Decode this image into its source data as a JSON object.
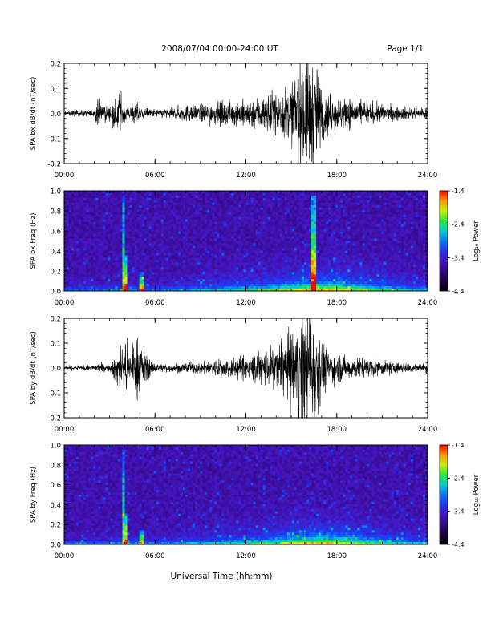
{
  "header": {
    "title": "2008/07/04  00:00-24:00 UT",
    "page": "Page 1/1"
  },
  "chart_data": [
    {
      "type": "line",
      "ylabel": "SPA bx dB/dt (nT/sec)",
      "ylim": [
        -0.2,
        0.2
      ],
      "xlim": [
        0,
        24
      ],
      "yticks": [
        "0.2",
        "0.1",
        "0.0",
        "-0.1",
        "-0.2"
      ],
      "xticks": [
        "00:00",
        "06:00",
        "12:00",
        "18:00",
        "24:00"
      ],
      "envelope": {
        "x": [
          0,
          1,
          2,
          2.2,
          3,
          3.6,
          4,
          4.3,
          4.8,
          5.1,
          6,
          7,
          8,
          9,
          10,
          11,
          12,
          13,
          14,
          15,
          15.5,
          16,
          16.5,
          17,
          17.5,
          18,
          19,
          20,
          21,
          22,
          23,
          24
        ],
        "amplitude": [
          0.01,
          0.01,
          0.01,
          0.05,
          0.02,
          0.07,
          0.05,
          0.02,
          0.04,
          0.02,
          0.015,
          0.02,
          0.03,
          0.03,
          0.04,
          0.04,
          0.05,
          0.06,
          0.08,
          0.1,
          0.2,
          0.2,
          0.2,
          0.1,
          0.07,
          0.06,
          0.05,
          0.04,
          0.03,
          0.025,
          0.02,
          0.02
        ]
      }
    },
    {
      "type": "heatmap",
      "ylabel": "SPA bx Freq (Hz)",
      "ylim": [
        0.0,
        1.0
      ],
      "xlim": [
        0,
        24
      ],
      "yticks": [
        "1.0",
        "0.8",
        "0.6",
        "0.4",
        "0.2",
        "0.0"
      ],
      "xticks": [
        "00:00",
        "06:00",
        "12:00",
        "18:00",
        "24:00"
      ],
      "colorbar": {
        "label": "Log₁₀ Power",
        "ticks": [
          "-1.4",
          "-2.4",
          "-3.4",
          "-4.4"
        ],
        "range": [
          -4.4,
          -1.4
        ]
      },
      "features": [
        {
          "x": 3.9,
          "f_max": 0.95,
          "strength": 0.55
        },
        {
          "x": 4.1,
          "f_max": 0.35,
          "strength": 0.75
        },
        {
          "x": 5.1,
          "f_max": 0.2,
          "strength": 0.6
        },
        {
          "x": 16.5,
          "f_max": 0.95,
          "strength": 0.7
        }
      ]
    },
    {
      "type": "line",
      "ylabel": "SPA by dB/dt (nT/sec)",
      "ylim": [
        -0.2,
        0.2
      ],
      "xlim": [
        0,
        24
      ],
      "yticks": [
        "0.2",
        "0.1",
        "0.0",
        "-0.1",
        "-0.2"
      ],
      "xticks": [
        "00:00",
        "06:00",
        "12:00",
        "18:00",
        "24:00"
      ],
      "envelope": {
        "x": [
          0,
          1,
          2,
          2.2,
          3,
          3.6,
          4,
          4.3,
          4.8,
          5.1,
          6,
          7,
          8,
          9,
          10,
          11,
          12,
          13,
          14,
          15,
          15.5,
          16,
          16.5,
          17,
          17.5,
          18,
          19,
          20,
          21,
          22,
          23,
          24
        ],
        "amplitude": [
          0.008,
          0.008,
          0.008,
          0.02,
          0.01,
          0.08,
          0.1,
          0.06,
          0.12,
          0.08,
          0.015,
          0.015,
          0.02,
          0.02,
          0.03,
          0.035,
          0.045,
          0.06,
          0.08,
          0.12,
          0.2,
          0.2,
          0.2,
          0.1,
          0.06,
          0.05,
          0.04,
          0.03,
          0.025,
          0.02,
          0.015,
          0.015
        ]
      }
    },
    {
      "type": "heatmap",
      "ylabel": "SPA by Freq (Hz)",
      "ylim": [
        0.0,
        1.0
      ],
      "xlim": [
        0,
        24
      ],
      "yticks": [
        "1.0",
        "0.8",
        "0.6",
        "0.4",
        "0.2",
        "0.0"
      ],
      "xticks": [
        "00:00",
        "06:00",
        "12:00",
        "18:00",
        "24:00"
      ],
      "colorbar": {
        "label": "Log₁₀ Power",
        "ticks": [
          "-1.4",
          "-2.4",
          "-3.4",
          "-4.4"
        ],
        "range": [
          -4.4,
          -1.4
        ]
      },
      "features": [
        {
          "x": 3.9,
          "f_max": 0.95,
          "strength": 0.5
        },
        {
          "x": 4.1,
          "f_max": 0.3,
          "strength": 0.75
        },
        {
          "x": 5.1,
          "f_max": 0.15,
          "strength": 0.55
        }
      ]
    }
  ],
  "footer": {
    "xlabel": "Universal Time (hh:mm)"
  }
}
